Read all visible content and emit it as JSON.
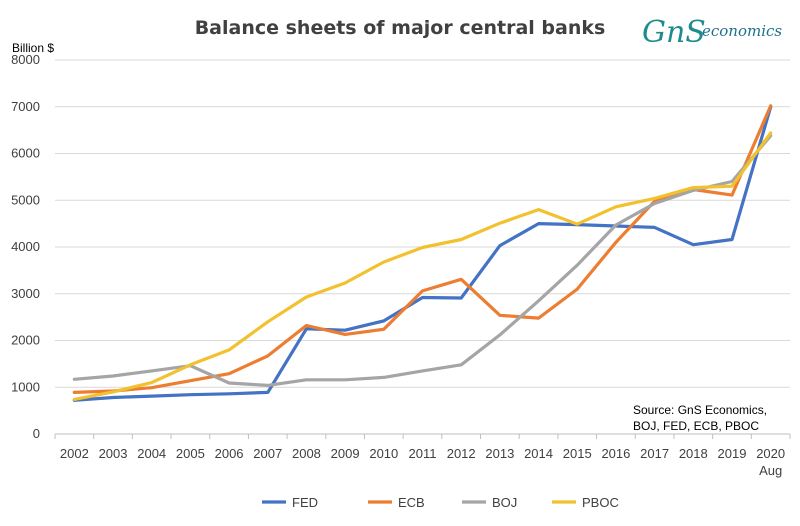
{
  "logo": {
    "mark": "GnS",
    "suffix": "economics"
  },
  "note": {
    "line1": "Source: GnS Economics,",
    "line2": "BOJ, FED, ECB, PBOC"
  },
  "chart_data": {
    "type": "line",
    "title": "Balance sheets of major central banks",
    "ylabel": "Billion $",
    "xlabel": "",
    "ylim": [
      0,
      8000
    ],
    "yticks": [
      0,
      1000,
      2000,
      3000,
      4000,
      5000,
      6000,
      7000,
      8000
    ],
    "categories": [
      "2002",
      "2003",
      "2004",
      "2005",
      "2006",
      "2007",
      "2008",
      "2009",
      "2010",
      "2011",
      "2012",
      "2013",
      "2014",
      "2015",
      "2016",
      "2017",
      "2018",
      "2019",
      "2020"
    ],
    "last_category_sublabel": "Aug",
    "grid": true,
    "legend_position": "bottom",
    "series": [
      {
        "name": "FED",
        "color": "#4472c4",
        "values": [
          720,
          780,
          810,
          840,
          860,
          890,
          2250,
          2220,
          2420,
          2920,
          2910,
          4030,
          4500,
          4480,
          4450,
          4420,
          4050,
          4160,
          7000
        ]
      },
      {
        "name": "ECB",
        "color": "#ed7d31",
        "values": [
          890,
          920,
          990,
          1140,
          1290,
          1670,
          2320,
          2130,
          2240,
          3060,
          3310,
          2540,
          2480,
          3100,
          4100,
          4980,
          5230,
          5110,
          7020
        ]
      },
      {
        "name": "BOJ",
        "color": "#a5a5a5",
        "values": [
          1170,
          1240,
          1350,
          1460,
          1090,
          1040,
          1160,
          1160,
          1210,
          1350,
          1480,
          2120,
          2850,
          3610,
          4470,
          4930,
          5210,
          5400,
          6380
        ]
      },
      {
        "name": "PBOC",
        "color": "#f2c12e",
        "values": [
          740,
          900,
          1100,
          1480,
          1800,
          2400,
          2930,
          3230,
          3680,
          3990,
          4160,
          4510,
          4800,
          4490,
          4860,
          5040,
          5270,
          5300,
          6440
        ]
      }
    ]
  }
}
